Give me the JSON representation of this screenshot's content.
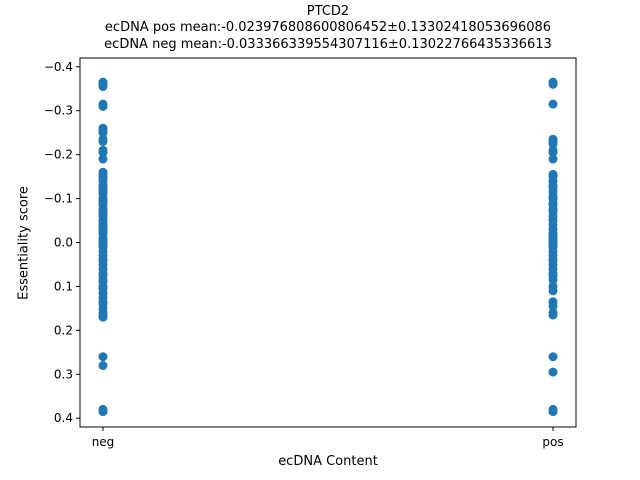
{
  "chart_data": {
    "type": "scatter",
    "title": "PTCD2",
    "subtitle_pos": "ecDNA pos mean:-0.023976808600806452±0.13302418053696086",
    "subtitle_neg": "ecDNA neg mean:-0.033366339554307116±0.13022766435336613",
    "xlabel": "ecDNA Content",
    "ylabel": "Essentiality score",
    "categories": [
      "neg",
      "pos"
    ],
    "yticks": [
      -0.4,
      -0.3,
      -0.2,
      -0.1,
      0.0,
      0.1,
      0.2,
      0.3,
      0.4
    ],
    "ytick_labels": [
      "−0.4",
      "−0.3",
      "−0.2",
      "−0.1",
      "0.0",
      "0.1",
      "0.2",
      "0.3",
      "0.4"
    ],
    "ylim": [
      -0.42,
      0.42
    ],
    "y_inverted": true,
    "grid": false,
    "marker_color": "#1f77b4",
    "series": [
      {
        "category": "neg",
        "values": [
          -0.365,
          -0.36,
          -0.355,
          -0.315,
          -0.31,
          -0.26,
          -0.255,
          -0.25,
          -0.235,
          -0.23,
          -0.21,
          -0.205,
          -0.19,
          -0.16,
          -0.155,
          -0.15,
          -0.145,
          -0.14,
          -0.13,
          -0.125,
          -0.12,
          -0.115,
          -0.11,
          -0.1,
          -0.095,
          -0.09,
          -0.085,
          -0.075,
          -0.07,
          -0.065,
          -0.06,
          -0.05,
          -0.045,
          -0.04,
          -0.035,
          -0.03,
          -0.025,
          -0.02,
          -0.01,
          -0.005,
          0.0,
          0.005,
          0.01,
          0.02,
          0.03,
          0.04,
          0.05,
          0.06,
          0.07,
          0.075,
          0.085,
          0.09,
          0.1,
          0.105,
          0.115,
          0.125,
          0.135,
          0.14,
          0.15,
          0.16,
          0.165,
          0.17,
          0.26,
          0.28,
          0.38,
          0.385
        ]
      },
      {
        "category": "pos",
        "values": [
          -0.365,
          -0.36,
          -0.315,
          -0.235,
          -0.23,
          -0.225,
          -0.21,
          -0.205,
          -0.19,
          -0.155,
          -0.15,
          -0.14,
          -0.13,
          -0.125,
          -0.115,
          -0.105,
          -0.1,
          -0.09,
          -0.085,
          -0.075,
          -0.07,
          -0.06,
          -0.05,
          -0.04,
          -0.03,
          -0.02,
          -0.015,
          -0.01,
          -0.005,
          0.0,
          0.005,
          0.01,
          0.02,
          0.03,
          0.04,
          0.05,
          0.06,
          0.07,
          0.075,
          0.085,
          0.1,
          0.11,
          0.135,
          0.145,
          0.16,
          0.165,
          0.26,
          0.295,
          0.38,
          0.385
        ]
      }
    ]
  }
}
